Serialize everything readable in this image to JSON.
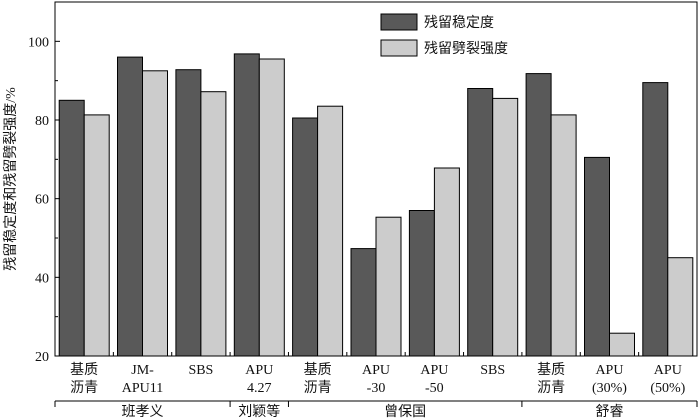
{
  "chart_data": {
    "type": "bar",
    "ylabel": "残留稳定度和残留劈裂强度/%",
    "ylim": [
      20,
      110
    ],
    "yticks": [
      20,
      40,
      60,
      80,
      100
    ],
    "legend_position": "top-right",
    "categories": [
      [
        "基质",
        "沥青"
      ],
      [
        "JM-",
        "APU11"
      ],
      [
        "SBS"
      ],
      [
        "APU",
        "4.27"
      ],
      [
        "基质",
        "沥青"
      ],
      [
        "APU",
        "-30"
      ],
      [
        "APU",
        "-50"
      ],
      [
        "SBS"
      ],
      [
        "基质",
        "沥青"
      ],
      [
        "APU",
        "(30%)"
      ],
      [
        "APU",
        "(50%)"
      ]
    ],
    "groups": [
      {
        "name": "班孝义",
        "categories": [
          0,
          1,
          2
        ]
      },
      {
        "name": "刘颖等",
        "categories": [
          3
        ]
      },
      {
        "name": "曾保国",
        "categories": [
          4,
          5,
          6,
          7
        ]
      },
      {
        "name": "舒睿",
        "categories": [
          8,
          9,
          10
        ]
      }
    ],
    "series": [
      {
        "name": "残留稳定度",
        "color": "#595959",
        "values": [
          85,
          96,
          92.8,
          96.8,
          80.5,
          47.3,
          57,
          88,
          91.8,
          70.5,
          89.5
        ]
      },
      {
        "name": "残留劈裂强度",
        "color": "#cccccc",
        "values": [
          81.3,
          92.5,
          87.2,
          95.5,
          83.5,
          55.3,
          67.8,
          85.5,
          81.3,
          25.8,
          45
        ]
      }
    ]
  }
}
